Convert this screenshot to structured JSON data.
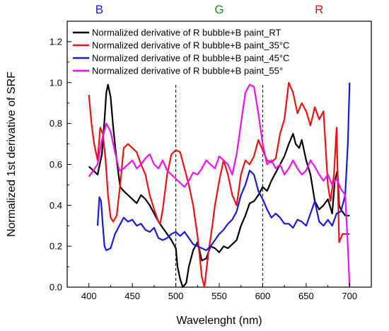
{
  "chart_data": {
    "type": "line",
    "xlabel": "Wavelenght (nm)",
    "ylabel": "Normalized 1st derivative of SRF",
    "xlim": [
      375,
      725
    ],
    "ylim": [
      0,
      1.3
    ],
    "xticks": [
      400,
      450,
      500,
      550,
      600,
      650,
      700
    ],
    "yticks": [
      0.0,
      0.2,
      0.4,
      0.6,
      0.8,
      1.0,
      1.2
    ],
    "xtick_labels": [
      "400",
      "450",
      "500",
      "550",
      "600",
      "650",
      "700"
    ],
    "ytick_labels": [
      "0.0",
      "0.2",
      "0.4",
      "0.6",
      "0.8",
      "1.0",
      "1.2"
    ],
    "grid": false,
    "legend_position": "top-left",
    "vlines": [
      500,
      600
    ],
    "band_labels": [
      {
        "text": "B",
        "x": 412,
        "color": "#1a1adb"
      },
      {
        "text": "G",
        "x": 550,
        "color": "#1f8f1f"
      },
      {
        "text": "R",
        "x": 665,
        "color": "#e01414"
      }
    ],
    "series": [
      {
        "name": "Normalized derivative of R bubble+B paint_RT",
        "color": "#000000",
        "points": [
          [
            400,
            0.59
          ],
          [
            405,
            0.57
          ],
          [
            410,
            0.55
          ],
          [
            415,
            0.65
          ],
          [
            418,
            0.82
          ],
          [
            420,
            0.95
          ],
          [
            422,
            0.99
          ],
          [
            425,
            0.93
          ],
          [
            428,
            0.78
          ],
          [
            432,
            0.62
          ],
          [
            436,
            0.49
          ],
          [
            440,
            0.47
          ],
          [
            445,
            0.45
          ],
          [
            450,
            0.43
          ],
          [
            455,
            0.41
          ],
          [
            460,
            0.45
          ],
          [
            465,
            0.43
          ],
          [
            470,
            0.4
          ],
          [
            475,
            0.36
          ],
          [
            480,
            0.32
          ],
          [
            485,
            0.29
          ],
          [
            490,
            0.26
          ],
          [
            495,
            0.23
          ],
          [
            500,
            0.19
          ],
          [
            502,
            0.1
          ],
          [
            505,
            0.04
          ],
          [
            508,
            0.0
          ],
          [
            512,
            0.02
          ],
          [
            515,
            0.1
          ],
          [
            520,
            0.18
          ],
          [
            525,
            0.22
          ],
          [
            530,
            0.13
          ],
          [
            535,
            0.14
          ],
          [
            540,
            0.2
          ],
          [
            545,
            0.19
          ],
          [
            550,
            0.17
          ],
          [
            555,
            0.2
          ],
          [
            560,
            0.19
          ],
          [
            565,
            0.21
          ],
          [
            570,
            0.23
          ],
          [
            575,
            0.3
          ],
          [
            580,
            0.35
          ],
          [
            585,
            0.41
          ],
          [
            590,
            0.42
          ],
          [
            595,
            0.45
          ],
          [
            600,
            0.49
          ],
          [
            605,
            0.47
          ],
          [
            610,
            0.52
          ],
          [
            615,
            0.56
          ],
          [
            620,
            0.6
          ],
          [
            625,
            0.64
          ],
          [
            630,
            0.7
          ],
          [
            635,
            0.75
          ],
          [
            638,
            0.7
          ],
          [
            642,
            0.68
          ],
          [
            645,
            0.72
          ],
          [
            650,
            0.62
          ],
          [
            655,
            0.55
          ],
          [
            660,
            0.42
          ],
          [
            665,
            0.38
          ],
          [
            670,
            0.4
          ],
          [
            675,
            0.43
          ],
          [
            680,
            0.36
          ],
          [
            683,
            0.52
          ],
          [
            686,
            0.57
          ],
          [
            688,
            0.4
          ],
          [
            690,
            0.38
          ],
          [
            695,
            0.35
          ],
          [
            700,
            0.35
          ]
        ]
      },
      {
        "name": "Normalized derivative of R bubble+B paint_35°C",
        "color": "#ee1111",
        "points": [
          [
            400,
            0.94
          ],
          [
            403,
            0.8
          ],
          [
            406,
            0.7
          ],
          [
            410,
            0.62
          ],
          [
            413,
            0.78
          ],
          [
            416,
            0.75
          ],
          [
            419,
            0.63
          ],
          [
            422,
            0.45
          ],
          [
            425,
            0.34
          ],
          [
            428,
            0.32
          ],
          [
            432,
            0.35
          ],
          [
            436,
            0.5
          ],
          [
            440,
            0.68
          ],
          [
            445,
            0.7
          ],
          [
            450,
            0.68
          ],
          [
            455,
            0.66
          ],
          [
            460,
            0.6
          ],
          [
            465,
            0.55
          ],
          [
            470,
            0.45
          ],
          [
            475,
            0.38
          ],
          [
            480,
            0.32
          ],
          [
            482,
            0.31
          ],
          [
            485,
            0.38
          ],
          [
            490,
            0.55
          ],
          [
            495,
            0.65
          ],
          [
            500,
            0.67
          ],
          [
            505,
            0.66
          ],
          [
            510,
            0.58
          ],
          [
            515,
            0.5
          ],
          [
            520,
            0.4
          ],
          [
            525,
            0.25
          ],
          [
            530,
            0.05
          ],
          [
            533,
            0.0
          ],
          [
            537,
            0.15
          ],
          [
            542,
            0.3
          ],
          [
            545,
            0.4
          ],
          [
            550,
            0.52
          ],
          [
            555,
            0.62
          ],
          [
            560,
            0.55
          ],
          [
            565,
            0.45
          ],
          [
            570,
            0.4
          ],
          [
            575,
            0.55
          ],
          [
            580,
            0.62
          ],
          [
            585,
            0.6
          ],
          [
            590,
            0.64
          ],
          [
            595,
            0.72
          ],
          [
            600,
            0.67
          ],
          [
            605,
            0.62
          ],
          [
            610,
            0.61
          ],
          [
            615,
            0.63
          ],
          [
            620,
            0.75
          ],
          [
            625,
            0.82
          ],
          [
            630,
            1.0
          ],
          [
            635,
            0.95
          ],
          [
            640,
            0.85
          ],
          [
            645,
            0.9
          ],
          [
            650,
            0.86
          ],
          [
            655,
            0.79
          ],
          [
            660,
            0.88
          ],
          [
            665,
            0.82
          ],
          [
            670,
            0.86
          ],
          [
            675,
            0.5
          ],
          [
            678,
            0.42
          ],
          [
            682,
            0.55
          ],
          [
            685,
            0.78
          ],
          [
            688,
            0.22
          ],
          [
            692,
            0.26
          ],
          [
            700,
            0.26
          ]
        ]
      },
      {
        "name": "Normalized derivative of R bubble+B paint_45°C",
        "color": "#1a1adb",
        "points": [
          [
            410,
            0.3
          ],
          [
            412,
            0.44
          ],
          [
            414,
            0.42
          ],
          [
            416,
            0.3
          ],
          [
            418,
            0.2
          ],
          [
            420,
            0.18
          ],
          [
            425,
            0.19
          ],
          [
            430,
            0.26
          ],
          [
            435,
            0.3
          ],
          [
            440,
            0.34
          ],
          [
            445,
            0.32
          ],
          [
            450,
            0.33
          ],
          [
            455,
            0.3
          ],
          [
            460,
            0.31
          ],
          [
            465,
            0.28
          ],
          [
            470,
            0.27
          ],
          [
            475,
            0.29
          ],
          [
            480,
            0.24
          ],
          [
            485,
            0.23
          ],
          [
            490,
            0.24
          ],
          [
            495,
            0.26
          ],
          [
            500,
            0.27
          ],
          [
            505,
            0.25
          ],
          [
            510,
            0.27
          ],
          [
            515,
            0.24
          ],
          [
            520,
            0.21
          ],
          [
            525,
            0.2
          ],
          [
            530,
            0.19
          ],
          [
            535,
            0.18
          ],
          [
            540,
            0.2
          ],
          [
            545,
            0.23
          ],
          [
            550,
            0.26
          ],
          [
            555,
            0.28
          ],
          [
            560,
            0.31
          ],
          [
            565,
            0.33
          ],
          [
            570,
            0.37
          ],
          [
            575,
            0.45
          ],
          [
            580,
            0.5
          ],
          [
            585,
            0.57
          ],
          [
            590,
            0.55
          ],
          [
            595,
            0.47
          ],
          [
            600,
            0.43
          ],
          [
            605,
            0.38
          ],
          [
            610,
            0.34
          ],
          [
            615,
            0.36
          ],
          [
            620,
            0.34
          ],
          [
            625,
            0.31
          ],
          [
            630,
            0.31
          ],
          [
            635,
            0.29
          ],
          [
            640,
            0.33
          ],
          [
            645,
            0.32
          ],
          [
            650,
            0.3
          ],
          [
            655,
            0.36
          ],
          [
            660,
            0.42
          ],
          [
            665,
            0.32
          ],
          [
            670,
            0.3
          ],
          [
            675,
            0.33
          ],
          [
            680,
            0.3
          ],
          [
            685,
            0.36
          ],
          [
            690,
            0.37
          ],
          [
            695,
            0.45
          ],
          [
            698,
            0.7
          ],
          [
            700,
            1.0
          ]
        ]
      },
      {
        "name": "Normalized derivative of R bubble+B paint_55°",
        "color": "#ee11ee",
        "points": [
          [
            400,
            0.54
          ],
          [
            405,
            0.57
          ],
          [
            410,
            0.6
          ],
          [
            415,
            0.72
          ],
          [
            420,
            0.8
          ],
          [
            425,
            0.76
          ],
          [
            430,
            0.66
          ],
          [
            435,
            0.57
          ],
          [
            440,
            0.58
          ],
          [
            445,
            0.6
          ],
          [
            450,
            0.62
          ],
          [
            455,
            0.58
          ],
          [
            460,
            0.6
          ],
          [
            465,
            0.63
          ],
          [
            470,
            0.65
          ],
          [
            475,
            0.6
          ],
          [
            480,
            0.58
          ],
          [
            485,
            0.62
          ],
          [
            490,
            0.57
          ],
          [
            495,
            0.55
          ],
          [
            500,
            0.53
          ],
          [
            505,
            0.51
          ],
          [
            510,
            0.49
          ],
          [
            515,
            0.52
          ],
          [
            520,
            0.56
          ],
          [
            525,
            0.55
          ],
          [
            530,
            0.58
          ],
          [
            535,
            0.62
          ],
          [
            540,
            0.6
          ],
          [
            545,
            0.58
          ],
          [
            550,
            0.64
          ],
          [
            555,
            0.62
          ],
          [
            560,
            0.6
          ],
          [
            565,
            0.55
          ],
          [
            570,
            0.65
          ],
          [
            575,
            0.8
          ],
          [
            580,
            0.95
          ],
          [
            585,
            0.99
          ],
          [
            590,
            0.98
          ],
          [
            595,
            0.85
          ],
          [
            600,
            0.7
          ],
          [
            605,
            0.6
          ],
          [
            610,
            0.62
          ],
          [
            615,
            0.58
          ],
          [
            620,
            0.6
          ],
          [
            625,
            0.55
          ],
          [
            630,
            0.58
          ],
          [
            635,
            0.62
          ],
          [
            640,
            0.58
          ],
          [
            645,
            0.55
          ],
          [
            650,
            0.57
          ],
          [
            655,
            0.62
          ],
          [
            660,
            0.59
          ],
          [
            665,
            0.55
          ],
          [
            670,
            0.52
          ],
          [
            675,
            0.55
          ],
          [
            680,
            0.5
          ],
          [
            685,
            0.53
          ],
          [
            690,
            0.48
          ],
          [
            695,
            0.45
          ],
          [
            698,
            0.2
          ],
          [
            700,
            0.0
          ]
        ]
      }
    ]
  }
}
